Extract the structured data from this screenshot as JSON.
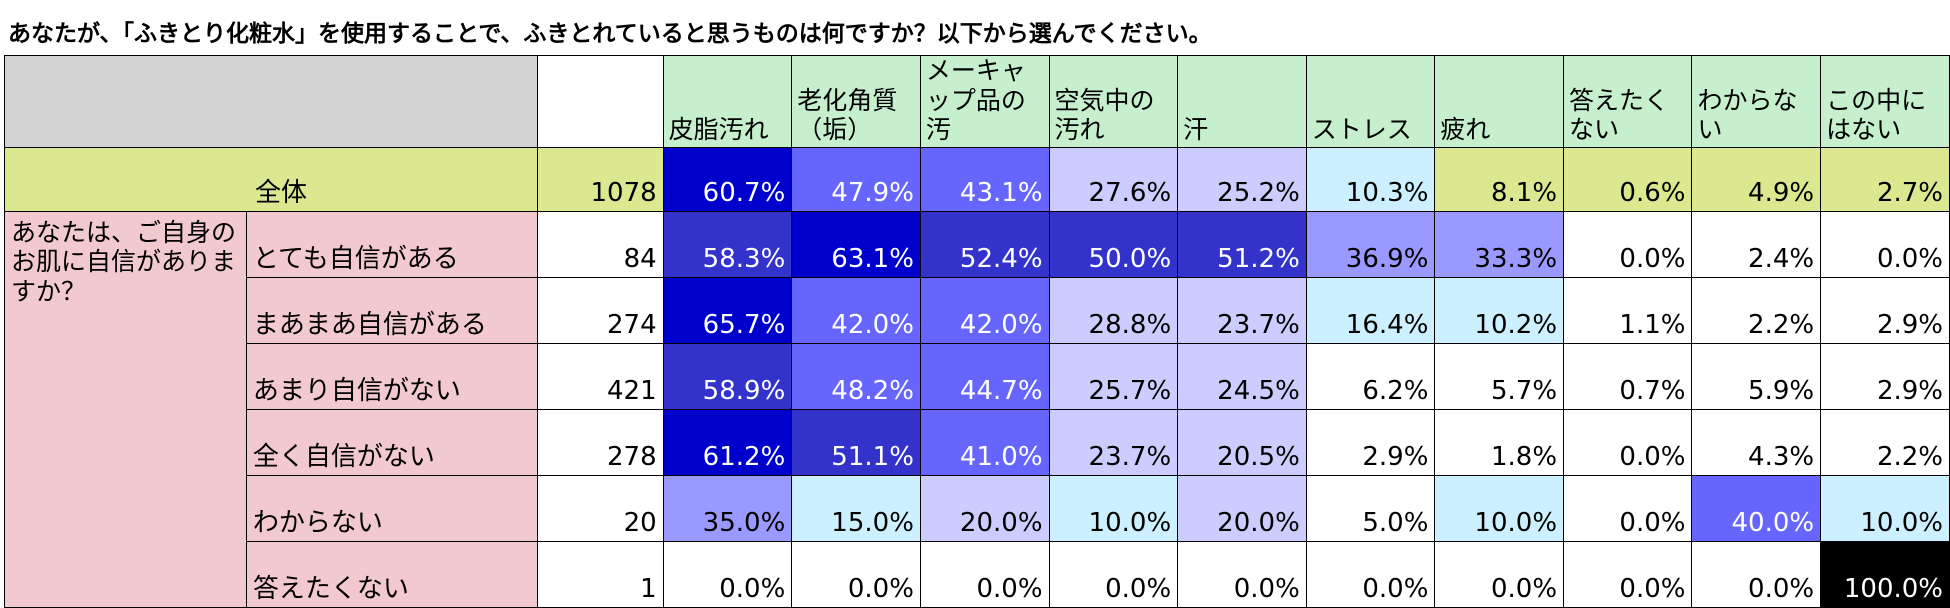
{
  "title": "あなたが、「ふきとり化粧水」を使用することで、ふきとれていると思うものは何ですか？以下から選んでください。",
  "colors": {
    "header_bg": "#c6efce",
    "corner_bg": "#d3d3d3",
    "total_row_bg": "#dbe88f",
    "row_label_bg": "#f2c9ce",
    "heat_darkest": "#0000cc",
    "heat_dark": "#3333cc",
    "heat_mid": "#6666ff",
    "heat_light": "#9999ff",
    "heat_pale": "#ccccff",
    "heat_cyan": "#ccf0ff",
    "heat_black": "#000000"
  },
  "chart_data": {
    "type": "table",
    "question": "あなたが、「ふきとり化粧水」を使用することで、ふきとれていると思うものは何ですか？以下から選んでください。",
    "columns": [
      "皮脂汚れ",
      "老化角質（垢）",
      "メーキャップ品の汚",
      "空気中の汚れ",
      "汗",
      "ストレス",
      "疲れ",
      "答えたくない",
      "わからない",
      "この中にはない"
    ],
    "total_row": {
      "label": "全体",
      "n": 1078,
      "values": [
        "60.7%",
        "47.9%",
        "43.1%",
        "27.6%",
        "25.2%",
        "10.3%",
        "8.1%",
        "0.6%",
        "4.9%",
        "2.7%"
      ],
      "colors": [
        "#0000cc",
        "#6666ff",
        "#6666ff",
        "#ccccff",
        "#ccccff",
        "#ccf0ff",
        "#dbe88f",
        "#dbe88f",
        "#dbe88f",
        "#dbe88f"
      ]
    },
    "group_label": "あなたは、ご自身のお肌に自信がありますか？",
    "rows": [
      {
        "label": "とても自信がある",
        "n": 84,
        "values": [
          "58.3%",
          "63.1%",
          "52.4%",
          "50.0%",
          "51.2%",
          "36.9%",
          "33.3%",
          "0.0%",
          "2.4%",
          "0.0%"
        ],
        "colors": [
          "#3333cc",
          "#0000cc",
          "#3333cc",
          "#3333cc",
          "#3333cc",
          "#9999ff",
          "#9999ff",
          "#ffffff",
          "#ffffff",
          "#ffffff"
        ]
      },
      {
        "label": "まあまあ自信がある",
        "n": 274,
        "values": [
          "65.7%",
          "42.0%",
          "42.0%",
          "28.8%",
          "23.7%",
          "16.4%",
          "10.2%",
          "1.1%",
          "2.2%",
          "2.9%"
        ],
        "colors": [
          "#0000cc",
          "#6666ff",
          "#6666ff",
          "#ccccff",
          "#ccccff",
          "#ccf0ff",
          "#ccf0ff",
          "#ffffff",
          "#ffffff",
          "#ffffff"
        ]
      },
      {
        "label": "あまり自信がない",
        "n": 421,
        "values": [
          "58.9%",
          "48.2%",
          "44.7%",
          "25.7%",
          "24.5%",
          "6.2%",
          "5.7%",
          "0.7%",
          "5.9%",
          "2.9%"
        ],
        "colors": [
          "#3333cc",
          "#6666ff",
          "#6666ff",
          "#ccccff",
          "#ccccff",
          "#ffffff",
          "#ffffff",
          "#ffffff",
          "#ffffff",
          "#ffffff"
        ]
      },
      {
        "label": "全く自信がない",
        "n": 278,
        "values": [
          "61.2%",
          "51.1%",
          "41.0%",
          "23.7%",
          "20.5%",
          "2.9%",
          "1.8%",
          "0.0%",
          "4.3%",
          "2.2%"
        ],
        "colors": [
          "#0000cc",
          "#3333cc",
          "#6666ff",
          "#ccccff",
          "#ccccff",
          "#ffffff",
          "#ffffff",
          "#ffffff",
          "#ffffff",
          "#ffffff"
        ]
      },
      {
        "label": "わからない",
        "n": 20,
        "values": [
          "35.0%",
          "15.0%",
          "20.0%",
          "10.0%",
          "20.0%",
          "5.0%",
          "10.0%",
          "0.0%",
          "40.0%",
          "10.0%"
        ],
        "colors": [
          "#9999ff",
          "#ccf0ff",
          "#ccccff",
          "#ccf0ff",
          "#ccccff",
          "#ffffff",
          "#ccf0ff",
          "#ffffff",
          "#6666ff",
          "#ccf0ff"
        ]
      },
      {
        "label": "答えたくない",
        "n": 1,
        "values": [
          "0.0%",
          "0.0%",
          "0.0%",
          "0.0%",
          "0.0%",
          "0.0%",
          "0.0%",
          "0.0%",
          "0.0%",
          "100.0%"
        ],
        "colors": [
          "#ffffff",
          "#ffffff",
          "#ffffff",
          "#ffffff",
          "#ffffff",
          "#ffffff",
          "#ffffff",
          "#ffffff",
          "#ffffff",
          "#000000"
        ]
      }
    ]
  }
}
